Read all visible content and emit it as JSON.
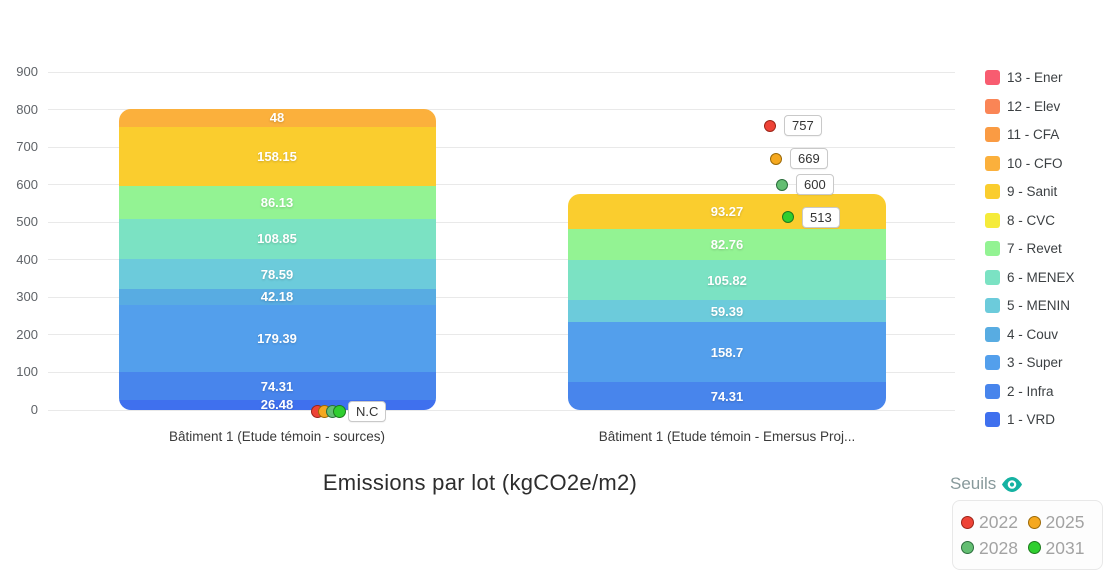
{
  "title": "Emissions par lot (kgCO2e/m2)",
  "chart_data": {
    "type": "bar",
    "stacked": true,
    "title": "Emissions par lot (kgCO2e/m2)",
    "xlabel": "",
    "ylabel": "",
    "ylim": [
      0,
      900
    ],
    "ytick_step": 100,
    "grid": true,
    "legend_position": "right",
    "categories": [
      "Bâtiment 1 (Etude témoin - sources)",
      "Bâtiment 1 (Etude témoin - Emersus Proj..."
    ],
    "series": [
      {
        "name": "13 - Ener",
        "color": "#f85c70",
        "values": [
          0,
          0
        ]
      },
      {
        "name": "12 - Elev",
        "color": "#fa8556",
        "values": [
          0,
          0
        ]
      },
      {
        "name": "11 - CFA",
        "color": "#fa9b43",
        "values": [
          0,
          0
        ]
      },
      {
        "name": "10 - CFO",
        "color": "#fbb03c",
        "values": [
          48,
          0
        ]
      },
      {
        "name": "9 - Sanit",
        "color": "#facd2e",
        "values": [
          158.15,
          93.27
        ]
      },
      {
        "name": "8 - CVC",
        "color": "#f5eb3a",
        "values": [
          0,
          0
        ]
      },
      {
        "name": "7 - Revet",
        "color": "#93f393",
        "values": [
          86.13,
          82.76
        ]
      },
      {
        "name": "6 - MENEX",
        "color": "#7be2c3",
        "values": [
          108.85,
          105.82
        ]
      },
      {
        "name": "5 - MENIN",
        "color": "#6ccbdb",
        "values": [
          78.59,
          59.39
        ]
      },
      {
        "name": "4 - Couv",
        "color": "#58ace2",
        "values": [
          42.18,
          0
        ]
      },
      {
        "name": "3 - Super",
        "color": "#539fec",
        "values": [
          179.39,
          158.7
        ]
      },
      {
        "name": "2 - Infra",
        "color": "#4885ec",
        "values": [
          74.31,
          74.31
        ]
      },
      {
        "name": "1 - VRD",
        "color": "#3f70ee",
        "values": [
          26.48,
          0
        ]
      }
    ],
    "thresholds": {
      "title": "Seuils",
      "years": [
        {
          "year": "2022",
          "color": "#ee4337",
          "border": "#9c2417"
        },
        {
          "year": "2025",
          "color": "#f5a81f",
          "border": "#9c6a08"
        },
        {
          "year": "2028",
          "color": "#63be72",
          "border": "#2b6e3c"
        },
        {
          "year": "2031",
          "color": "#2fce2f",
          "border": "#1d7a1d"
        }
      ],
      "markers": [
        {
          "category_index": 0,
          "type": "nc",
          "label": "N.C"
        },
        {
          "category_index": 1,
          "type": "values",
          "values": [
            {
              "year": "2022",
              "value": 757
            },
            {
              "year": "2025",
              "value": 669
            },
            {
              "year": "2028",
              "value": 600
            },
            {
              "year": "2031",
              "value": 513
            }
          ]
        }
      ]
    }
  },
  "colors": {
    "grid": "#e9e9e9",
    "axis_text": "#5f6368",
    "legend_text": "#3c4043",
    "eye_icon": "#15b2a2"
  }
}
